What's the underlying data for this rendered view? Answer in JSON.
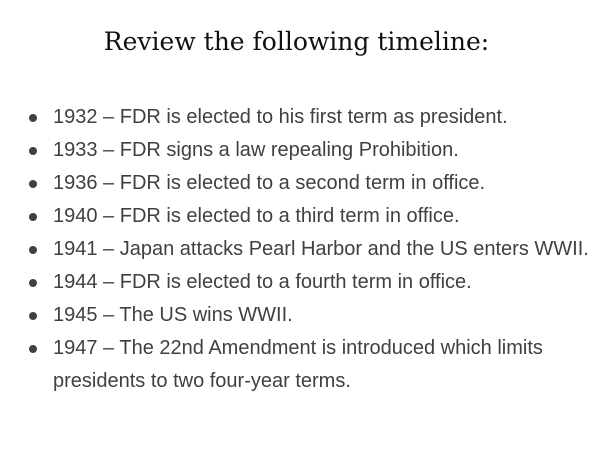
{
  "heading": "Review the following timeline:",
  "events": [
    "1932 – FDR is elected to his first term as president.",
    "1933 – FDR signs a law repealing Prohibition.",
    "1936 – FDR is elected to a second term in office.",
    "1940 – FDR is elected to a third term in office.",
    "1941 – Japan attacks Pearl Harbor and the US enters WWII.",
    "1944 – FDR is elected to a fourth term in office.",
    "1945 – The US wins WWII.",
    "1947 – The 22nd Amendment is introduced which limits presidents to two four-year terms."
  ]
}
